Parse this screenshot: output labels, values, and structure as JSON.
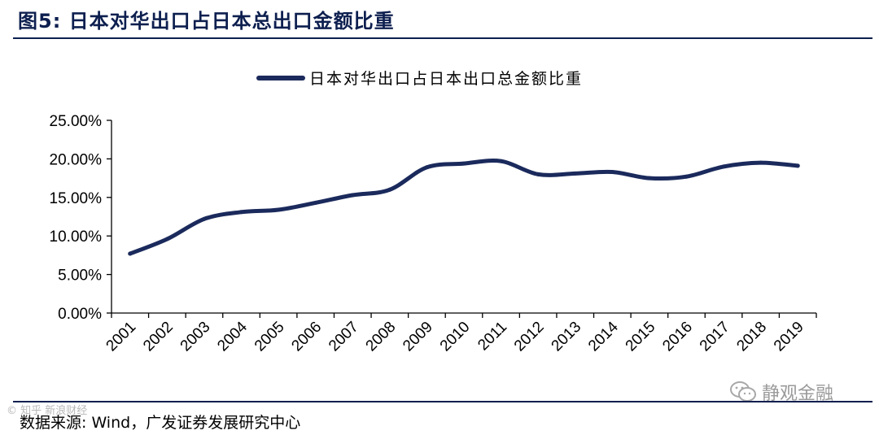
{
  "figure": {
    "title": "图5:  日本对华出口占日本总出口金额比重",
    "source": "数据来源: Wind，广发证券发展研究中心",
    "watermark": "© 知乎 新浪财经",
    "wechat_label": "静观金融",
    "wechat_icon": "wechat-icon"
  },
  "colors": {
    "series": "#1b2a5c",
    "accent": "#0d1f4f",
    "axis": "#000000"
  },
  "chart_data": {
    "type": "line",
    "title": "",
    "xlabel": "",
    "ylabel": "",
    "legend_position": "top-center",
    "grid": false,
    "ylim": [
      0,
      0.25
    ],
    "yticks": [
      "0.00%",
      "5.00%",
      "10.00%",
      "15.00%",
      "20.00%",
      "25.00%"
    ],
    "categories": [
      "2001",
      "2002",
      "2003",
      "2004",
      "2005",
      "2006",
      "2007",
      "2008",
      "2009",
      "2010",
      "2011",
      "2012",
      "2013",
      "2014",
      "2015",
      "2016",
      "2017",
      "2018",
      "2019"
    ],
    "series": [
      {
        "name": "日本对华出口占日本出口总金额比重",
        "values": [
          0.077,
          0.096,
          0.122,
          0.131,
          0.134,
          0.143,
          0.153,
          0.16,
          0.189,
          0.194,
          0.197,
          0.18,
          0.181,
          0.183,
          0.175,
          0.177,
          0.19,
          0.195,
          0.191
        ]
      }
    ]
  }
}
